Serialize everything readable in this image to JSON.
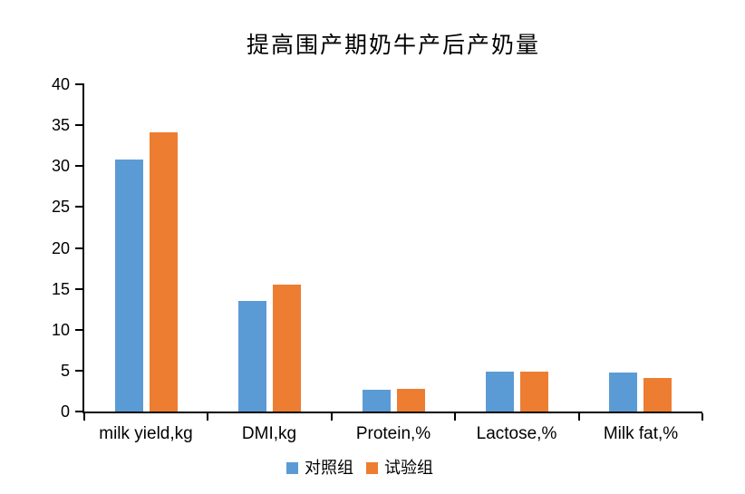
{
  "chart_data": {
    "type": "bar",
    "title": "提高围产期奶牛产后产奶量",
    "categories": [
      "milk yield,kg",
      "DMI,kg",
      "Protein,%",
      "Lactose,%",
      "Milk fat,%"
    ],
    "series": [
      {
        "name": "对照组",
        "color": "#5B9BD5",
        "values": [
          30.8,
          13.5,
          2.7,
          4.9,
          4.8
        ]
      },
      {
        "name": "试验组",
        "color": "#ED7D31",
        "values": [
          34.1,
          15.5,
          2.8,
          4.9,
          4.1
        ]
      }
    ],
    "ylim": [
      0,
      40
    ],
    "ytick_step": 5,
    "grid": false,
    "legend_position": "bottom",
    "xlabel": "",
    "ylabel": "",
    "axis_color": "#000000",
    "background_color": "#ffffff"
  }
}
